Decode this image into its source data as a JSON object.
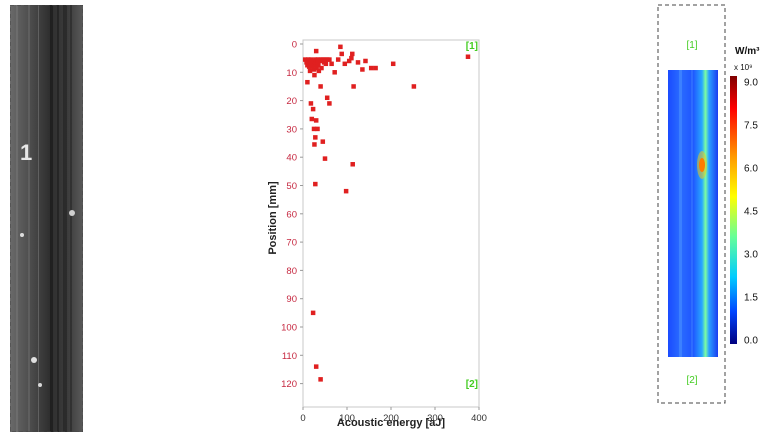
{
  "specimen_photo": {
    "marker_text": "1"
  },
  "chart_data": {
    "type": "scatter",
    "xlabel": "Acoustic energy [aJ]",
    "ylabel": "Position [mm]",
    "xlim": [
      0,
      400
    ],
    "ylim": [
      0,
      125
    ],
    "y_inverted": true,
    "xticks": [
      0,
      100,
      200,
      300,
      400
    ],
    "yticks": [
      0,
      10,
      20,
      30,
      40,
      50,
      60,
      70,
      80,
      90,
      100,
      110,
      120
    ],
    "grid": false,
    "marker_color": "#e02020",
    "corner_labels": {
      "top": "[1]",
      "bottom": "[2]"
    },
    "points": [
      {
        "x": 5,
        "y": 5.5
      },
      {
        "x": 8,
        "y": 6.5
      },
      {
        "x": 10,
        "y": 7.5
      },
      {
        "x": 12,
        "y": 5.5
      },
      {
        "x": 14,
        "y": 8
      },
      {
        "x": 15,
        "y": 6.5
      },
      {
        "x": 16,
        "y": 9.5
      },
      {
        "x": 17,
        "y": 7
      },
      {
        "x": 18,
        "y": 5.5
      },
      {
        "x": 20,
        "y": 8
      },
      {
        "x": 22,
        "y": 7
      },
      {
        "x": 24,
        "y": 6
      },
      {
        "x": 25,
        "y": 9
      },
      {
        "x": 26,
        "y": 11
      },
      {
        "x": 27,
        "y": 6.5
      },
      {
        "x": 28,
        "y": 5.5
      },
      {
        "x": 29,
        "y": 7.5
      },
      {
        "x": 30,
        "y": 2.5
      },
      {
        "x": 31,
        "y": 8.5
      },
      {
        "x": 33,
        "y": 6.5
      },
      {
        "x": 34,
        "y": 5.5
      },
      {
        "x": 35,
        "y": 7.5
      },
      {
        "x": 36,
        "y": 9.5
      },
      {
        "x": 38,
        "y": 6
      },
      {
        "x": 40,
        "y": 5.5
      },
      {
        "x": 42,
        "y": 8.5
      },
      {
        "x": 45,
        "y": 5.5
      },
      {
        "x": 48,
        "y": 6.5
      },
      {
        "x": 50,
        "y": 5.5
      },
      {
        "x": 52,
        "y": 7
      },
      {
        "x": 55,
        "y": 5.5
      },
      {
        "x": 60,
        "y": 5.5
      },
      {
        "x": 65,
        "y": 7
      },
      {
        "x": 72,
        "y": 10
      },
      {
        "x": 80,
        "y": 5.5
      },
      {
        "x": 85,
        "y": 1
      },
      {
        "x": 88,
        "y": 3.5
      },
      {
        "x": 95,
        "y": 7
      },
      {
        "x": 105,
        "y": 6
      },
      {
        "x": 110,
        "y": 5
      },
      {
        "x": 112,
        "y": 3.5
      },
      {
        "x": 125,
        "y": 6.5
      },
      {
        "x": 135,
        "y": 9
      },
      {
        "x": 142,
        "y": 6
      },
      {
        "x": 155,
        "y": 8.5
      },
      {
        "x": 165,
        "y": 8.5
      },
      {
        "x": 205,
        "y": 7
      },
      {
        "x": 375,
        "y": 4.5
      },
      {
        "x": 252,
        "y": 15
      },
      {
        "x": 115,
        "y": 15
      },
      {
        "x": 10,
        "y": 13.5
      },
      {
        "x": 40,
        "y": 15
      },
      {
        "x": 55,
        "y": 19
      },
      {
        "x": 60,
        "y": 21
      },
      {
        "x": 18,
        "y": 21
      },
      {
        "x": 23,
        "y": 23
      },
      {
        "x": 30,
        "y": 27
      },
      {
        "x": 20,
        "y": 26.5
      },
      {
        "x": 25,
        "y": 30
      },
      {
        "x": 33,
        "y": 30
      },
      {
        "x": 28,
        "y": 33
      },
      {
        "x": 45,
        "y": 34.5
      },
      {
        "x": 26,
        "y": 35.5
      },
      {
        "x": 50,
        "y": 40.5
      },
      {
        "x": 113,
        "y": 42.5
      },
      {
        "x": 28,
        "y": 49.5
      },
      {
        "x": 98,
        "y": 52
      },
      {
        "x": 23,
        "y": 95
      },
      {
        "x": 30,
        "y": 114
      },
      {
        "x": 40,
        "y": 118.5
      }
    ]
  },
  "heat_map": {
    "unit": "W/m³",
    "multiplier": "x 10⁹",
    "colorbar_ticks": [
      "9.0",
      "7.5",
      "6.0",
      "4.5",
      "3.0",
      "1.5",
      "0.0"
    ],
    "top_label": "[1]",
    "bottom_label": "[2]"
  },
  "colors": {
    "label_green": "#44cc22",
    "tick_red": "#c62840",
    "axis_gray": "#9a9a9a"
  }
}
